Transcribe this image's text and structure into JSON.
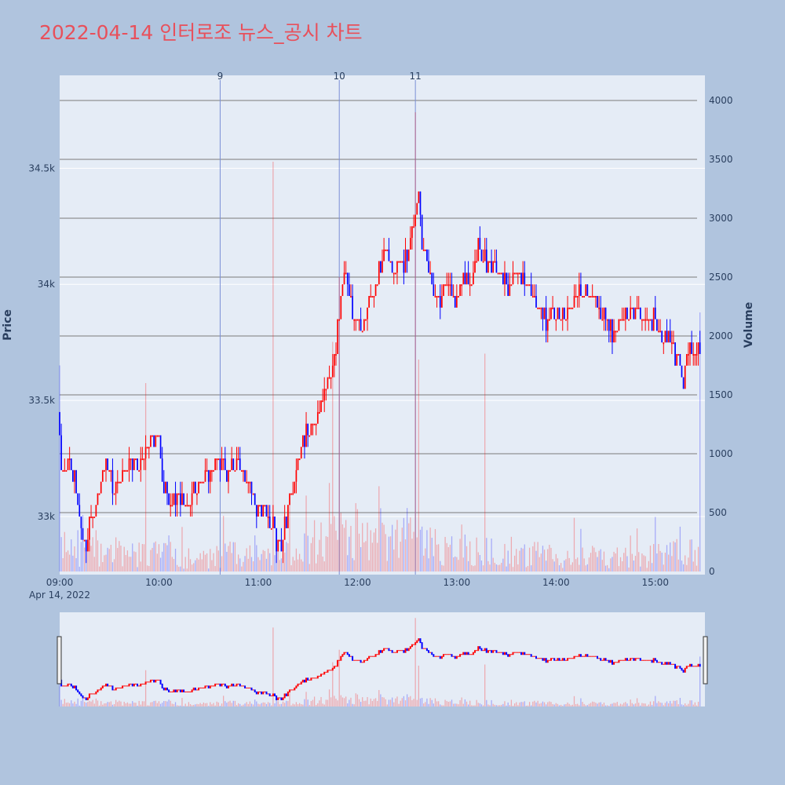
{
  "chart_data": {
    "type": "candlestick",
    "title": "2022-04-14 인터로조 뉴스_공시 차트",
    "ylabel": "Price",
    "y2label": "Volume",
    "date_label": "Apr 14, 2022",
    "price_ylim": [
      32750,
      34900
    ],
    "volume_ylim": [
      0,
      4150
    ],
    "x_range": [
      "09:00",
      "15:30"
    ],
    "price_ticks": [
      {
        "value": 33000,
        "label": "33k"
      },
      {
        "value": 33500,
        "label": "33.5k"
      },
      {
        "value": 34000,
        "label": "34k"
      },
      {
        "value": 34500,
        "label": "34.5k"
      }
    ],
    "volume_ticks": [
      {
        "value": 0,
        "label": "0"
      },
      {
        "value": 500,
        "label": "500"
      },
      {
        "value": 1000,
        "label": "1000"
      },
      {
        "value": 1500,
        "label": "1500"
      },
      {
        "value": 2000,
        "label": "2000"
      },
      {
        "value": 2500,
        "label": "2500"
      },
      {
        "value": 3000,
        "label": "3000"
      },
      {
        "value": 3500,
        "label": "3500"
      },
      {
        "value": 4000,
        "label": "4000"
      }
    ],
    "time_ticks": [
      "09:00",
      "10:00",
      "11:00",
      "12:00",
      "13:00",
      "14:00",
      "15:00"
    ],
    "news_markers": [
      {
        "label": "9",
        "time": "10:37"
      },
      {
        "label": "10",
        "time": "11:49"
      },
      {
        "label": "11",
        "time": "12:35"
      }
    ],
    "colors": {
      "up": "#ff0000",
      "down": "#0000ff",
      "title": "#e8505b",
      "paper": "#b0c4de",
      "plot": "#e5ecf6",
      "marker": "#7b8fd6"
    },
    "price_path": [
      [
        "09:00",
        33450
      ],
      [
        "09:02",
        33200
      ],
      [
        "09:05",
        33250
      ],
      [
        "09:10",
        33150
      ],
      [
        "09:12",
        33050
      ],
      [
        "09:15",
        32900
      ],
      [
        "09:17",
        32850
      ],
      [
        "09:20",
        33000
      ],
      [
        "09:25",
        33100
      ],
      [
        "09:28",
        33250
      ],
      [
        "09:32",
        33150
      ],
      [
        "09:35",
        33100
      ],
      [
        "09:40",
        33200
      ],
      [
        "09:45",
        33250
      ],
      [
        "09:50",
        33200
      ],
      [
        "09:55",
        33300
      ],
      [
        "10:00",
        33380
      ],
      [
        "10:02",
        33250
      ],
      [
        "10:05",
        33100
      ],
      [
        "10:08",
        33050
      ],
      [
        "10:12",
        33080
      ],
      [
        "10:18",
        33050
      ],
      [
        "10:22",
        33100
      ],
      [
        "10:28",
        33150
      ],
      [
        "10:32",
        33200
      ],
      [
        "10:38",
        33250
      ],
      [
        "10:42",
        33200
      ],
      [
        "10:47",
        33250
      ],
      [
        "10:50",
        33200
      ],
      [
        "10:55",
        33150
      ],
      [
        "11:00",
        33050
      ],
      [
        "11:05",
        33000
      ],
      [
        "11:10",
        32950
      ],
      [
        "11:12",
        32850
      ],
      [
        "11:15",
        32880
      ],
      [
        "11:18",
        33000
      ],
      [
        "11:22",
        33150
      ],
      [
        "11:25",
        33250
      ],
      [
        "11:30",
        33350
      ],
      [
        "11:35",
        33400
      ],
      [
        "11:40",
        33500
      ],
      [
        "11:45",
        33600
      ],
      [
        "11:48",
        33750
      ],
      [
        "11:50",
        33900
      ],
      [
        "11:52",
        34050
      ],
      [
        "11:55",
        34000
      ],
      [
        "11:58",
        33900
      ],
      [
        "12:02",
        33800
      ],
      [
        "12:06",
        33850
      ],
      [
        "12:10",
        33950
      ],
      [
        "12:14",
        34050
      ],
      [
        "12:18",
        34150
      ],
      [
        "12:22",
        34050
      ],
      [
        "12:26",
        34050
      ],
      [
        "12:30",
        34100
      ],
      [
        "12:33",
        34200
      ],
      [
        "12:36",
        34300
      ],
      [
        "12:38",
        34400
      ],
      [
        "12:40",
        34200
      ],
      [
        "12:43",
        34100
      ],
      [
        "12:46",
        34000
      ],
      [
        "12:50",
        33900
      ],
      [
        "12:55",
        34000
      ],
      [
        "13:00",
        33950
      ],
      [
        "13:05",
        34000
      ],
      [
        "13:10",
        34050
      ],
      [
        "13:14",
        34180
      ],
      [
        "13:18",
        34100
      ],
      [
        "13:25",
        34050
      ],
      [
        "13:32",
        34000
      ],
      [
        "13:38",
        34050
      ],
      [
        "13:45",
        33950
      ],
      [
        "13:50",
        33900
      ],
      [
        "13:55",
        33850
      ],
      [
        "14:00",
        33900
      ],
      [
        "14:05",
        33850
      ],
      [
        "14:12",
        33950
      ],
      [
        "14:18",
        34000
      ],
      [
        "14:25",
        33900
      ],
      [
        "14:30",
        33850
      ],
      [
        "14:35",
        33800
      ],
      [
        "14:42",
        33850
      ],
      [
        "14:48",
        33900
      ],
      [
        "14:55",
        33850
      ],
      [
        "15:00",
        33850
      ],
      [
        "15:03",
        33800
      ],
      [
        "15:06",
        33750
      ],
      [
        "15:09",
        33800
      ],
      [
        "15:12",
        33700
      ],
      [
        "15:15",
        33650
      ],
      [
        "15:18",
        33550
      ],
      [
        "15:20",
        33700
      ]
    ],
    "volume_profile": [
      [
        "09:00",
        250
      ],
      [
        "09:15",
        180
      ],
      [
        "09:30",
        220
      ],
      [
        "09:45",
        150
      ],
      [
        "10:00",
        200
      ],
      [
        "10:15",
        110
      ],
      [
        "10:30",
        120
      ],
      [
        "10:45",
        180
      ],
      [
        "11:00",
        200
      ],
      [
        "11:15",
        180
      ],
      [
        "11:30",
        260
      ],
      [
        "11:45",
        420
      ],
      [
        "12:00",
        360
      ],
      [
        "12:15",
        280
      ],
      [
        "12:30",
        340
      ],
      [
        "12:45",
        250
      ],
      [
        "13:00",
        220
      ],
      [
        "13:15",
        200
      ],
      [
        "13:30",
        150
      ],
      [
        "13:45",
        160
      ],
      [
        "14:00",
        150
      ],
      [
        "14:15",
        140
      ],
      [
        "14:30",
        140
      ],
      [
        "14:45",
        130
      ],
      [
        "15:00",
        150
      ],
      [
        "15:15",
        180
      ],
      [
        "15:30",
        160
      ]
    ],
    "volume_spikes": [
      [
        "09:00",
        1750
      ],
      [
        "09:52",
        1600
      ],
      [
        "11:09",
        3480
      ],
      [
        "11:49",
        2500
      ],
      [
        "11:45",
        1950
      ],
      [
        "12:35",
        3900
      ],
      [
        "12:37",
        1800
      ],
      [
        "13:17",
        1850
      ],
      [
        "15:30",
        2200
      ]
    ]
  }
}
